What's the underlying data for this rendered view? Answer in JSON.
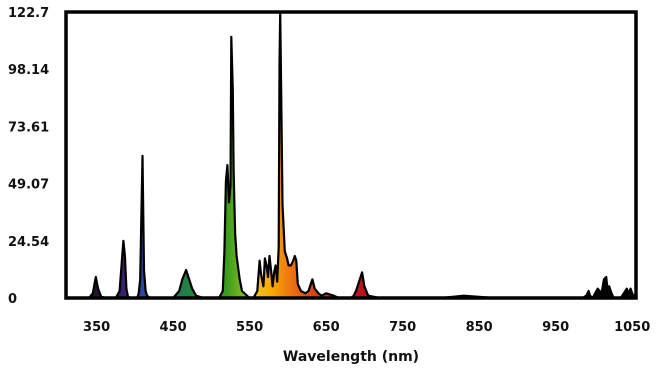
{
  "chart_data": {
    "type": "area",
    "title": "",
    "xlabel": "Wavelength (nm)",
    "ylabel": "",
    "xlim": [
      310,
      1055
    ],
    "ylim": [
      0,
      122.7
    ],
    "x_ticks": [
      350,
      450,
      550,
      650,
      750,
      850,
      950,
      1050
    ],
    "x_tick_labels": [
      "350",
      "450",
      "550",
      "650",
      "750",
      "850",
      "950",
      "1050"
    ],
    "y_ticks": [
      0,
      24.54,
      49.07,
      73.61,
      98.14,
      122.7
    ],
    "y_tick_labels": [
      "0",
      "24.54",
      "49.07",
      "73.61",
      "98.14",
      "122.7"
    ],
    "grid": false,
    "legend": "none",
    "fill": "visible-spectrum gradient under curve",
    "series": [
      {
        "x": [
          310,
          340,
          345,
          349,
          352,
          356,
          362,
          375,
          380,
          385,
          387,
          389,
          391,
          395,
          403,
          405,
          407,
          410,
          412,
          414,
          416,
          420,
          430,
          450,
          458,
          462,
          467,
          470,
          475,
          480,
          490,
          500,
          510,
          515,
          517,
          519,
          521,
          523,
          525,
          526,
          528,
          529,
          531,
          533,
          537,
          540,
          550,
          555,
          560,
          563,
          565,
          568,
          570,
          572,
          574,
          576,
          578,
          580,
          582,
          584,
          586,
          588,
          589,
          590,
          591,
          593,
          596,
          599,
          601,
          604,
          607,
          609,
          611,
          613,
          617,
          623,
          627,
          630,
          632,
          635,
          640,
          644,
          650,
          660,
          667,
          675,
          682,
          686,
          689,
          692,
          695,
          697,
          700,
          705,
          720,
          800,
          830,
          870,
          950,
          985,
          990,
          993,
          995,
          998,
          1000,
          1005,
          1010,
          1013,
          1016,
          1018,
          1020,
          1023,
          1026,
          1030,
          1035,
          1039,
          1041,
          1043,
          1045,
          1048,
          1050,
          1052,
          1055
        ],
        "y": [
          0,
          0,
          2,
          9,
          4,
          0.5,
          0,
          0,
          3,
          24.5,
          18,
          4,
          0.5,
          0,
          0,
          2,
          8,
          61,
          12,
          3,
          1,
          0,
          0,
          0,
          3,
          8,
          12,
          9,
          4,
          1,
          0,
          0,
          0,
          3,
          20,
          50,
          57,
          41,
          48,
          112,
          89,
          55,
          28,
          18,
          8,
          3,
          0,
          0,
          3,
          16,
          10,
          5,
          17,
          14,
          9,
          18,
          12,
          5,
          11,
          14,
          7,
          22,
          100,
          122.7,
          95,
          40,
          20,
          17,
          14,
          14,
          16,
          18,
          16,
          6,
          3,
          2,
          3,
          6,
          8,
          4,
          2,
          1,
          2,
          1,
          0,
          0,
          0,
          1,
          3,
          6,
          9,
          11,
          5,
          1,
          0,
          0,
          1,
          0,
          0,
          0,
          1,
          3,
          1,
          0,
          1,
          4,
          2,
          8,
          9,
          3,
          5,
          2,
          0,
          0,
          0,
          2,
          3,
          4,
          2,
          4,
          2,
          1,
          0
        ]
      }
    ]
  }
}
